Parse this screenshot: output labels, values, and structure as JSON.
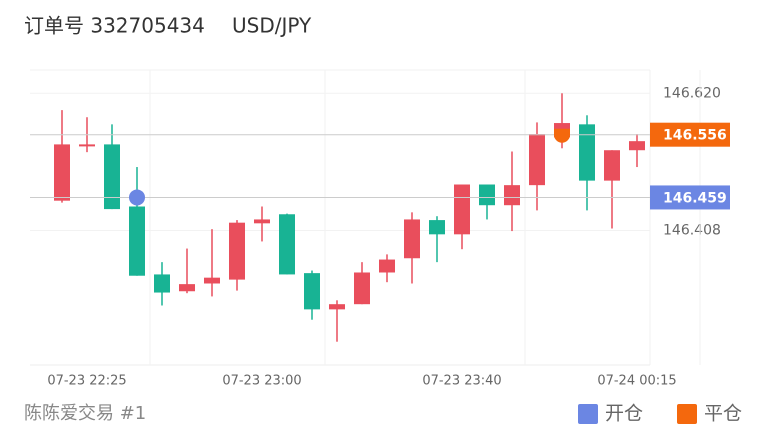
{
  "chart_data": {
    "type": "candlestick",
    "title": "订单号 332705434",
    "subtitle": "USD/JPY",
    "caption": "陈陈爱交易 #1",
    "categories": [
      null,
      "07-23 22:25",
      null,
      null,
      null,
      null,
      null,
      null,
      "07-23 23:00",
      null,
      null,
      null,
      null,
      null,
      null,
      null,
      "07-23 23:40",
      null,
      null,
      null,
      null,
      null,
      null,
      "07-24 00:15"
    ],
    "open": [
      146.454,
      146.538,
      146.541,
      146.445,
      146.34,
      146.314,
      146.326,
      146.332,
      146.419,
      146.433,
      146.342,
      146.286,
      146.294,
      146.343,
      146.365,
      146.424,
      146.402,
      146.479,
      146.447,
      146.478,
      146.552,
      146.572,
      146.485,
      146.532
    ],
    "high": [
      146.594,
      146.583,
      146.572,
      146.506,
      146.359,
      146.38,
      146.41,
      146.424,
      146.445,
      146.434,
      146.346,
      146.3,
      146.359,
      146.371,
      146.436,
      146.43,
      146.479,
      146.479,
      146.53,
      146.575,
      146.62,
      146.586,
      146.532,
      146.557
    ],
    "low": [
      146.451,
      146.529,
      146.441,
      146.338,
      146.292,
      146.311,
      146.306,
      146.315,
      146.391,
      146.34,
      146.27,
      146.236,
      146.294,
      146.328,
      146.326,
      146.359,
      146.379,
      146.425,
      146.407,
      146.439,
      146.535,
      146.439,
      146.411,
      146.506
    ],
    "close": [
      146.541,
      146.541,
      146.441,
      146.338,
      146.312,
      146.325,
      146.335,
      146.42,
      146.425,
      146.34,
      146.286,
      146.294,
      146.343,
      146.363,
      146.425,
      146.402,
      146.479,
      146.447,
      146.478,
      146.557,
      146.574,
      146.485,
      146.532,
      146.546
    ],
    "up_color": "#e94e5c",
    "down_color": "#18b394",
    "series": [
      {
        "name": "开仓",
        "color": "#6b86e3",
        "values": [
          null,
          null,
          null,
          146.459,
          null,
          null,
          null,
          null,
          null,
          null,
          null,
          null,
          null,
          null,
          null,
          null,
          null,
          null,
          null,
          null,
          null,
          null,
          null,
          null
        ]
      },
      {
        "name": "平仓",
        "color": "#f4680d",
        "values": [
          null,
          null,
          null,
          null,
          null,
          null,
          null,
          null,
          null,
          null,
          null,
          null,
          null,
          null,
          null,
          null,
          null,
          null,
          null,
          null,
          146.556,
          null,
          null,
          null
        ]
      }
    ],
    "ylim": [
      146.2,
      146.656
    ],
    "yticks": [
      146.408,
      {
        "value": 146.62,
        "label": "146.620"
      }
    ],
    "grid": true
  }
}
